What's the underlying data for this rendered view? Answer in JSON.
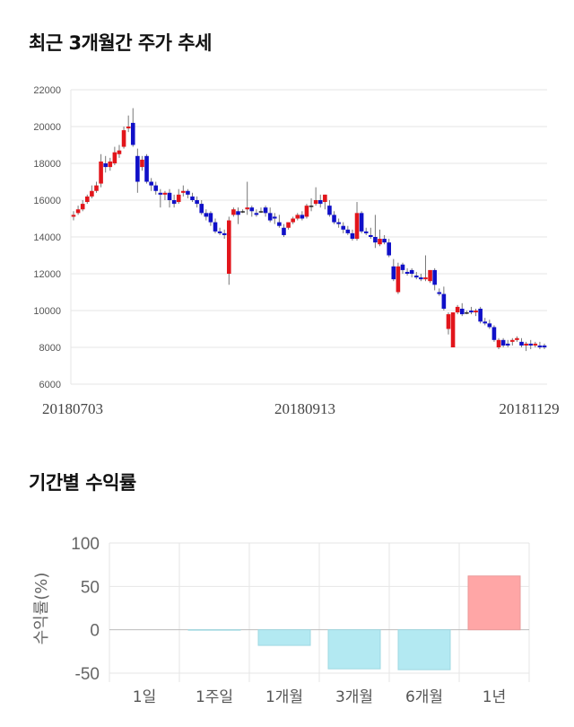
{
  "stock_title": "최근 3개월간 주가 추세",
  "returns_title": "기간별 수익률",
  "chart_data": [
    {
      "type": "candlestick",
      "title": "최근 3개월간 주가 추세",
      "ylim": [
        6000,
        22000
      ],
      "yticks": [
        "22000",
        "20000",
        "18000",
        "16000",
        "14000",
        "12000",
        "10000",
        "8000",
        "6000"
      ],
      "date_labels": [
        "20180703",
        "20180913",
        "20181129"
      ],
      "grid": true,
      "colors": {
        "up": "#e2151b",
        "down": "#1010c8",
        "flat": "#222222"
      },
      "candles": [
        [
          15100,
          15400,
          15200,
          14900
        ],
        [
          15300,
          15700,
          15500,
          15200
        ],
        [
          15500,
          16000,
          15800,
          15400
        ],
        [
          15900,
          16300,
          16200,
          15800
        ],
        [
          16200,
          16800,
          16500,
          16100
        ],
        [
          16500,
          17000,
          16800,
          16400
        ],
        [
          16900,
          18500,
          18100,
          16700
        ],
        [
          18000,
          18400,
          17800,
          17500
        ],
        [
          17800,
          18300,
          18100,
          17600
        ],
        [
          18000,
          18900,
          18600,
          17900
        ],
        [
          18500,
          19000,
          18700,
          18300
        ],
        [
          18900,
          20000,
          19800,
          18800
        ],
        [
          19900,
          20600,
          20000,
          19700
        ],
        [
          20200,
          21000,
          19000,
          18900
        ],
        [
          18400,
          18800,
          17000,
          16400
        ],
        [
          17800,
          18400,
          18200,
          17600
        ],
        [
          18400,
          18500,
          17000,
          16900
        ],
        [
          17000,
          17200,
          16800,
          16500
        ],
        [
          16800,
          17000,
          16500,
          16300
        ],
        [
          16400,
          16600,
          16300,
          15600
        ],
        [
          16300,
          16500,
          16400,
          16000
        ],
        [
          16400,
          16600,
          16000,
          15600
        ],
        [
          16000,
          16300,
          15800,
          15600
        ],
        [
          15900,
          16600,
          16300,
          15800
        ],
        [
          16400,
          16800,
          16500,
          16200
        ],
        [
          16500,
          16600,
          16300,
          16100
        ],
        [
          16200,
          16400,
          16000,
          15900
        ],
        [
          16000,
          16200,
          15800,
          15600
        ],
        [
          15800,
          16000,
          15300,
          15200
        ],
        [
          15300,
          15500,
          15100,
          14900
        ],
        [
          15300,
          15400,
          14800,
          14600
        ],
        [
          14800,
          15000,
          14300,
          14200
        ],
        [
          14300,
          14500,
          14200,
          14100
        ],
        [
          14200,
          14400,
          14100,
          13900
        ],
        [
          12000,
          15100,
          14900,
          11400
        ],
        [
          15200,
          15600,
          15500,
          15100
        ],
        [
          15400,
          15600,
          15200,
          14700
        ],
        [
          15400,
          15500,
          15400,
          15300
        ],
        [
          15500,
          17000,
          15600,
          15200
        ],
        [
          15600,
          15700,
          15400,
          15100
        ],
        [
          15300,
          15500,
          15200,
          15100
        ],
        [
          15400,
          15600,
          15400,
          15300
        ],
        [
          15600,
          15700,
          15300,
          15100
        ],
        [
          15300,
          15600,
          14900,
          14800
        ],
        [
          15100,
          15300,
          15000,
          14700
        ],
        [
          14800,
          15200,
          14600,
          14500
        ],
        [
          14500,
          14700,
          14100,
          14000
        ],
        [
          14500,
          14700,
          14800,
          14400
        ],
        [
          14800,
          15100,
          15000,
          14700
        ],
        [
          15000,
          15300,
          15200,
          14900
        ],
        [
          15200,
          15400,
          15000,
          14900
        ],
        [
          15100,
          15800,
          15700,
          15000
        ],
        [
          15700,
          16100,
          15700,
          15400
        ],
        [
          15800,
          16700,
          16000,
          15700
        ],
        [
          16000,
          16300,
          15800,
          15600
        ],
        [
          15900,
          16300,
          16300,
          15500
        ],
        [
          15700,
          16000,
          15200,
          15100
        ],
        [
          15200,
          15400,
          14800,
          14700
        ],
        [
          14800,
          15000,
          14700,
          14500
        ],
        [
          14600,
          14800,
          14400,
          14200
        ],
        [
          14400,
          14600,
          14200,
          14100
        ],
        [
          14200,
          14400,
          13900,
          13800
        ],
        [
          13900,
          15900,
          15300,
          13800
        ],
        [
          15300,
          15400,
          14300,
          14200
        ],
        [
          14300,
          14500,
          14200,
          14100
        ],
        [
          14100,
          14500,
          14000,
          13900
        ],
        [
          14000,
          15200,
          13700,
          13400
        ],
        [
          13600,
          14400,
          13900,
          13500
        ],
        [
          13900,
          14100,
          13700,
          13600
        ],
        [
          13700,
          13900,
          13000,
          12900
        ],
        [
          12400,
          12800,
          11700,
          11600
        ],
        [
          11000,
          12600,
          12400,
          10900
        ],
        [
          12500,
          12600,
          12200,
          12000
        ],
        [
          12100,
          12300,
          12000,
          11900
        ],
        [
          12200,
          12300,
          12000,
          11800
        ],
        [
          11900,
          12100,
          11800,
          11700
        ],
        [
          11800,
          12000,
          11700,
          11600
        ],
        [
          11700,
          13000,
          11800,
          11600
        ],
        [
          11600,
          12200,
          12200,
          11500
        ],
        [
          12200,
          12300,
          11400,
          11100
        ],
        [
          11000,
          11200,
          10900,
          10800
        ],
        [
          10900,
          11300,
          10100,
          10000
        ],
        [
          9000,
          9900,
          9800,
          8700
        ],
        [
          8000,
          9900,
          9900,
          8000
        ],
        [
          9900,
          10300,
          10200,
          9800
        ],
        [
          10100,
          10400,
          9800,
          9700
        ],
        [
          9900,
          10000,
          9900,
          9800
        ],
        [
          10000,
          10200,
          9900,
          9800
        ],
        [
          9900,
          10100,
          10000,
          9700
        ],
        [
          10100,
          10200,
          9400,
          9300
        ],
        [
          9400,
          9600,
          9300,
          9200
        ],
        [
          9300,
          9500,
          9100,
          9000
        ],
        [
          9100,
          9200,
          8400,
          8300
        ],
        [
          8000,
          8500,
          8400,
          7900
        ],
        [
          8400,
          8500,
          8100,
          8000
        ],
        [
          8200,
          8400,
          8100,
          8000
        ],
        [
          8300,
          8500,
          8400,
          8100
        ],
        [
          8400,
          8600,
          8500,
          8300
        ],
        [
          8300,
          8500,
          8100,
          8000
        ],
        [
          8100,
          8300,
          8200,
          7800
        ],
        [
          8200,
          8400,
          8100,
          7900
        ],
        [
          8100,
          8300,
          8200,
          8000
        ],
        [
          8100,
          8300,
          8000,
          7900
        ],
        [
          8100,
          8200,
          8000,
          7900
        ]
      ]
    },
    {
      "type": "bar",
      "title": "기간별 수익률",
      "ylabel": "수익률(%)",
      "ylim": [
        -50,
        100
      ],
      "yticks": [
        "100",
        "50",
        "0",
        "-50"
      ],
      "categories": [
        "1일",
        "1주일",
        "1개월",
        "3개월",
        "6개월",
        "1년"
      ],
      "values": [
        0,
        -0.5,
        -18,
        -45,
        -46,
        62
      ],
      "colors": {
        "negative": "#b3e9f2",
        "positive": "#ffa6a6"
      }
    }
  ]
}
